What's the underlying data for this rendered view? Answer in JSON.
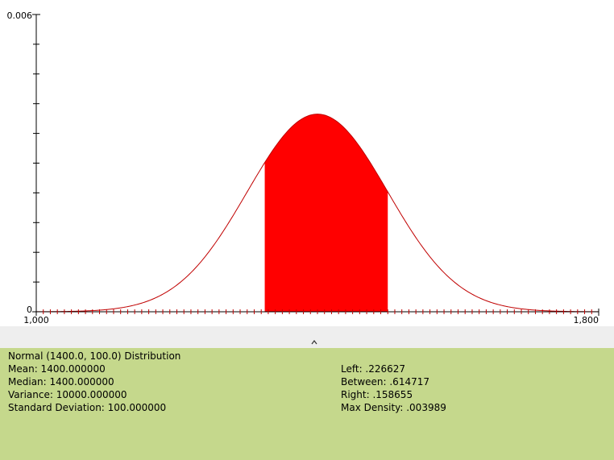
{
  "chart_data": {
    "type": "normal-density",
    "mean": 1400,
    "sd": 100,
    "xlim": [
      1000,
      1800
    ],
    "ylim": [
      0,
      0.006
    ],
    "xticks": [
      {
        "value": 1000,
        "label": "1,000"
      },
      {
        "value": 1800,
        "label": "1,800"
      }
    ],
    "xminor_step": 10,
    "yticks": [
      0,
      0.006
    ],
    "yminor_ticks": [
      0.0006,
      0.0012,
      0.0018,
      0.0024,
      0.003,
      0.0036,
      0.0042,
      0.0048,
      0.0054
    ],
    "shade": [
      1325,
      1500
    ],
    "line_color": "#c00000",
    "fill_color": "#ff0000"
  },
  "info": {
    "title": "Normal (1400.0, 100.0) Distribution",
    "left": [
      "Mean: 1400.000000",
      "Median: 1400.000000",
      "Variance: 10000.000000",
      "Standard Deviation: 100.000000"
    ],
    "right": [
      "Left: .226627",
      "Between: .614717",
      "Right: .158655",
      "Max Density: .003989"
    ]
  }
}
